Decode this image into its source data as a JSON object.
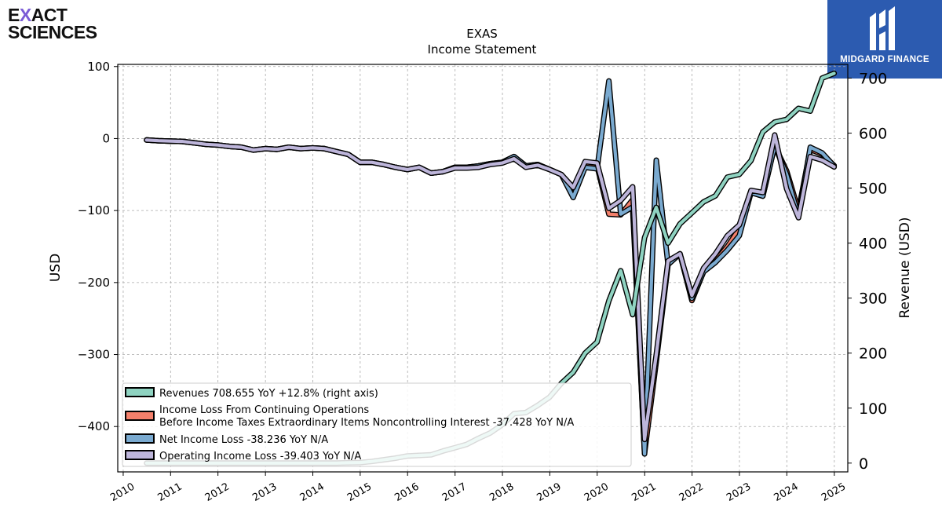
{
  "brand_left": {
    "line1_a": "E",
    "line1_x": "X",
    "line1_b": "ACT",
    "line2": "SCIENCES"
  },
  "brand_right": {
    "name": "MIDGARD FINANCE"
  },
  "colors": {
    "revenues": "#8fd3c1",
    "income_before_tax": "#f4806b",
    "net_income": "#7aaad0",
    "operating_income": "#bdb5da"
  },
  "chart_data": {
    "type": "line",
    "title": "EXAS",
    "subtitle": "Income Statement",
    "ylabel": "USD",
    "ylabel_right": "Revenue (USD)",
    "ylim": [
      -463,
      103
    ],
    "ylim_right": [
      -16,
      725
    ],
    "xlim": [
      "2009-11-20",
      "2025-04-15"
    ],
    "y_ticks": [
      100,
      0,
      -100,
      -200,
      -300,
      -400
    ],
    "y_tick_labels": [
      "100",
      "0",
      "−100",
      "−200",
      "−300",
      "−400"
    ],
    "y_right_ticks": [
      0,
      100,
      200,
      300,
      400,
      500,
      600,
      700
    ],
    "x_ticks": [
      "2010",
      "2011",
      "2012",
      "2013",
      "2014",
      "2015",
      "2016",
      "2017",
      "2018",
      "2019",
      "2020",
      "2021",
      "2022",
      "2023",
      "2024",
      "2025"
    ],
    "grid": true,
    "legend_position": "lower-left",
    "series": [
      {
        "key": "income_before_tax",
        "name": "Income Loss From Continuing Operations Before Income Taxes Extraordinary Items Noncontrolling Interest  -37.428 YoY N/A",
        "legend_lines": [
          "Income Loss From Continuing Operations",
          "Before Income Taxes Extraordinary Items Noncontrolling Interest  -37.428 YoY N/A"
        ],
        "axis": "left",
        "points": [
          [
            "2010-06-30",
            -2
          ],
          [
            "2010-09-30",
            -3
          ],
          [
            "2010-12-31",
            -3.5
          ],
          [
            "2011-03-31",
            -4
          ],
          [
            "2011-06-30",
            -6
          ],
          [
            "2011-09-30",
            -8
          ],
          [
            "2011-12-31",
            -9
          ],
          [
            "2012-03-31",
            -11
          ],
          [
            "2012-06-30",
            -12
          ],
          [
            "2012-09-30",
            -16
          ],
          [
            "2012-12-31",
            -14
          ],
          [
            "2013-03-31",
            -15
          ],
          [
            "2013-06-30",
            -12
          ],
          [
            "2013-09-30",
            -14
          ],
          [
            "2013-12-31",
            -13
          ],
          [
            "2014-03-31",
            -14
          ],
          [
            "2014-06-30",
            -18
          ],
          [
            "2014-09-30",
            -22
          ],
          [
            "2014-12-31",
            -33
          ],
          [
            "2015-03-31",
            -33
          ],
          [
            "2015-06-30",
            -36
          ],
          [
            "2015-09-30",
            -40
          ],
          [
            "2015-12-31",
            -43
          ],
          [
            "2016-03-31",
            -40
          ],
          [
            "2016-06-30",
            -48
          ],
          [
            "2016-09-30",
            -46
          ],
          [
            "2016-12-31",
            -40
          ],
          [
            "2017-03-31",
            -40
          ],
          [
            "2017-06-30",
            -38
          ],
          [
            "2017-09-30",
            -35
          ],
          [
            "2017-12-31",
            -33
          ],
          [
            "2018-03-31",
            -25
          ],
          [
            "2018-06-30",
            -38
          ],
          [
            "2018-09-30",
            -36
          ],
          [
            "2018-12-31",
            -43
          ],
          [
            "2019-03-31",
            -50
          ],
          [
            "2019-06-30",
            -80
          ],
          [
            "2019-09-30",
            -35
          ],
          [
            "2019-12-31",
            -38
          ],
          [
            "2020-03-31",
            -105
          ],
          [
            "2020-06-30",
            -106
          ],
          [
            "2020-09-30",
            -85
          ],
          [
            "2020-12-31",
            -437
          ],
          [
            "2021-03-31",
            -310
          ],
          [
            "2021-06-30",
            -175
          ],
          [
            "2021-09-30",
            -160
          ],
          [
            "2021-12-31",
            -225
          ],
          [
            "2022-03-31",
            -185
          ],
          [
            "2022-06-30",
            -170
          ],
          [
            "2022-09-30",
            -150
          ],
          [
            "2022-12-31",
            -125
          ],
          [
            "2023-03-31",
            -75
          ],
          [
            "2023-06-30",
            -80
          ],
          [
            "2023-09-30",
            -10
          ],
          [
            "2023-12-31",
            -45
          ],
          [
            "2024-03-31",
            -100
          ],
          [
            "2024-06-30",
            -15
          ],
          [
            "2024-09-30",
            -22
          ],
          [
            "2024-12-31",
            -37.428
          ]
        ]
      },
      {
        "key": "net_income",
        "name": "Net Income Loss  -38.236 YoY N/A",
        "axis": "left",
        "points": [
          [
            "2010-06-30",
            -2
          ],
          [
            "2010-09-30",
            -3
          ],
          [
            "2010-12-31",
            -3.5
          ],
          [
            "2011-03-31",
            -4
          ],
          [
            "2011-06-30",
            -6
          ],
          [
            "2011-09-30",
            -8
          ],
          [
            "2011-12-31",
            -9
          ],
          [
            "2012-03-31",
            -11
          ],
          [
            "2012-06-30",
            -12
          ],
          [
            "2012-09-30",
            -16
          ],
          [
            "2012-12-31",
            -14
          ],
          [
            "2013-03-31",
            -15
          ],
          [
            "2013-06-30",
            -12
          ],
          [
            "2013-09-30",
            -14
          ],
          [
            "2013-12-31",
            -13
          ],
          [
            "2014-03-31",
            -14
          ],
          [
            "2014-06-30",
            -18
          ],
          [
            "2014-09-30",
            -22
          ],
          [
            "2014-12-31",
            -33
          ],
          [
            "2015-03-31",
            -33
          ],
          [
            "2015-06-30",
            -36
          ],
          [
            "2015-09-30",
            -40
          ],
          [
            "2015-12-31",
            -43
          ],
          [
            "2016-03-31",
            -40
          ],
          [
            "2016-06-30",
            -48
          ],
          [
            "2016-09-30",
            -46
          ],
          [
            "2016-12-31",
            -40
          ],
          [
            "2017-03-31",
            -40
          ],
          [
            "2017-06-30",
            -38
          ],
          [
            "2017-09-30",
            -35
          ],
          [
            "2017-12-31",
            -33
          ],
          [
            "2018-03-31",
            -25
          ],
          [
            "2018-06-30",
            -38
          ],
          [
            "2018-09-30",
            -36
          ],
          [
            "2018-12-31",
            -43
          ],
          [
            "2019-03-31",
            -50
          ],
          [
            "2019-06-30",
            -82
          ],
          [
            "2019-09-30",
            -40
          ],
          [
            "2019-12-31",
            -42
          ],
          [
            "2020-03-31",
            80
          ],
          [
            "2020-06-30",
            -105
          ],
          [
            "2020-09-30",
            -95
          ],
          [
            "2020-12-31",
            -438
          ],
          [
            "2021-03-31",
            -30
          ],
          [
            "2021-06-30",
            -175
          ],
          [
            "2021-09-30",
            -160
          ],
          [
            "2021-12-31",
            -222
          ],
          [
            "2022-03-31",
            -185
          ],
          [
            "2022-06-30",
            -172
          ],
          [
            "2022-09-30",
            -155
          ],
          [
            "2022-12-31",
            -135
          ],
          [
            "2023-03-31",
            -75
          ],
          [
            "2023-06-30",
            -80
          ],
          [
            "2023-09-30",
            -10
          ],
          [
            "2023-12-31",
            -50
          ],
          [
            "2024-03-31",
            -108
          ],
          [
            "2024-06-30",
            -12
          ],
          [
            "2024-09-30",
            -20
          ],
          [
            "2024-12-31",
            -38.236
          ]
        ]
      },
      {
        "key": "operating_income",
        "name": "Operating Income Loss  -39.403 YoY N/A",
        "axis": "left",
        "points": [
          [
            "2010-06-30",
            -2
          ],
          [
            "2010-09-30",
            -3
          ],
          [
            "2010-12-31",
            -3.5
          ],
          [
            "2011-03-31",
            -4
          ],
          [
            "2011-06-30",
            -6
          ],
          [
            "2011-09-30",
            -8
          ],
          [
            "2011-12-31",
            -9
          ],
          [
            "2012-03-31",
            -11
          ],
          [
            "2012-06-30",
            -12
          ],
          [
            "2012-09-30",
            -16
          ],
          [
            "2012-12-31",
            -14
          ],
          [
            "2013-03-31",
            -15
          ],
          [
            "2013-06-30",
            -12
          ],
          [
            "2013-09-30",
            -14
          ],
          [
            "2013-12-31",
            -13
          ],
          [
            "2014-03-31",
            -14
          ],
          [
            "2014-06-30",
            -18
          ],
          [
            "2014-09-30",
            -22
          ],
          [
            "2014-12-31",
            -33
          ],
          [
            "2015-03-31",
            -33
          ],
          [
            "2015-06-30",
            -36
          ],
          [
            "2015-09-30",
            -40
          ],
          [
            "2015-12-31",
            -43
          ],
          [
            "2016-03-31",
            -40
          ],
          [
            "2016-06-30",
            -48
          ],
          [
            "2016-09-30",
            -46
          ],
          [
            "2016-12-31",
            -41
          ],
          [
            "2017-03-31",
            -41
          ],
          [
            "2017-06-30",
            -40
          ],
          [
            "2017-09-30",
            -36
          ],
          [
            "2017-12-31",
            -34
          ],
          [
            "2018-03-31",
            -28
          ],
          [
            "2018-06-30",
            -40
          ],
          [
            "2018-09-30",
            -37
          ],
          [
            "2018-12-31",
            -43
          ],
          [
            "2019-03-31",
            -50
          ],
          [
            "2019-06-30",
            -68
          ],
          [
            "2019-09-30",
            -32
          ],
          [
            "2019-12-31",
            -34
          ],
          [
            "2020-03-31",
            -97
          ],
          [
            "2020-06-30",
            -86
          ],
          [
            "2020-09-30",
            -67
          ],
          [
            "2020-12-31",
            -418
          ],
          [
            "2021-03-31",
            -300
          ],
          [
            "2021-06-30",
            -170
          ],
          [
            "2021-09-30",
            -160
          ],
          [
            "2021-12-31",
            -218
          ],
          [
            "2022-03-31",
            -180
          ],
          [
            "2022-06-30",
            -160
          ],
          [
            "2022-09-30",
            -135
          ],
          [
            "2022-12-31",
            -120
          ],
          [
            "2023-03-31",
            -72
          ],
          [
            "2023-06-30",
            -75
          ],
          [
            "2023-09-30",
            5
          ],
          [
            "2023-12-31",
            -70
          ],
          [
            "2024-03-31",
            -110
          ],
          [
            "2024-06-30",
            -25
          ],
          [
            "2024-09-30",
            -30
          ],
          [
            "2024-12-31",
            -39.403
          ]
        ]
      },
      {
        "key": "revenues",
        "name": "Revenues  708.655 YoY +12.8% (right axis)",
        "axis": "right",
        "points": [
          [
            "2010-06-30",
            0
          ],
          [
            "2010-09-30",
            0
          ],
          [
            "2010-12-31",
            0
          ],
          [
            "2011-03-31",
            0
          ],
          [
            "2011-06-30",
            0
          ],
          [
            "2011-09-30",
            0
          ],
          [
            "2011-12-31",
            0
          ],
          [
            "2012-03-31",
            0
          ],
          [
            "2012-06-30",
            0
          ],
          [
            "2012-09-30",
            0
          ],
          [
            "2012-12-31",
            0
          ],
          [
            "2013-03-31",
            0
          ],
          [
            "2013-06-30",
            0
          ],
          [
            "2013-09-30",
            0
          ],
          [
            "2013-12-31",
            0
          ],
          [
            "2014-03-31",
            0
          ],
          [
            "2014-06-30",
            0
          ],
          [
            "2014-09-30",
            0.5
          ],
          [
            "2014-12-31",
            1
          ],
          [
            "2015-03-31",
            3
          ],
          [
            "2015-06-30",
            6
          ],
          [
            "2015-09-30",
            9
          ],
          [
            "2015-12-31",
            13
          ],
          [
            "2016-03-31",
            14
          ],
          [
            "2016-06-30",
            15
          ],
          [
            "2016-09-30",
            22
          ],
          [
            "2016-12-31",
            28
          ],
          [
            "2017-03-31",
            34
          ],
          [
            "2017-06-30",
            45
          ],
          [
            "2017-09-30",
            55
          ],
          [
            "2017-12-31",
            70
          ],
          [
            "2018-03-31",
            90
          ],
          [
            "2018-06-30",
            92
          ],
          [
            "2018-09-30",
            105
          ],
          [
            "2018-12-31",
            120
          ],
          [
            "2019-03-31",
            145
          ],
          [
            "2019-06-30",
            165
          ],
          [
            "2019-09-30",
            200
          ],
          [
            "2019-12-31",
            220
          ],
          [
            "2020-03-31",
            295
          ],
          [
            "2020-06-30",
            350
          ],
          [
            "2020-09-30",
            270
          ],
          [
            "2020-12-31",
            410
          ],
          [
            "2021-03-31",
            465
          ],
          [
            "2021-06-30",
            400
          ],
          [
            "2021-09-30",
            435
          ],
          [
            "2021-12-31",
            455
          ],
          [
            "2022-03-31",
            475
          ],
          [
            "2022-06-30",
            486
          ],
          [
            "2022-09-30",
            520
          ],
          [
            "2022-12-31",
            525
          ],
          [
            "2023-03-31",
            550
          ],
          [
            "2023-06-30",
            602
          ],
          [
            "2023-09-30",
            620
          ],
          [
            "2023-12-31",
            625
          ],
          [
            "2024-03-31",
            645
          ],
          [
            "2024-06-30",
            640
          ],
          [
            "2024-09-30",
            700
          ],
          [
            "2024-12-31",
            708.655
          ]
        ]
      }
    ]
  }
}
